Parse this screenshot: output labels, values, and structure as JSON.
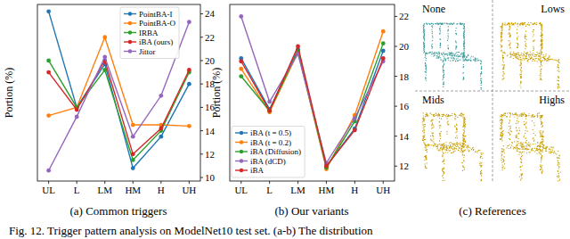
{
  "chart_data": [
    {
      "type": "line",
      "title": "(a) Common triggers",
      "y_label": "Portion (%)",
      "categories": [
        "UL",
        "L",
        "LM",
        "HM",
        "H",
        "UH"
      ],
      "series": [
        {
          "name": "PointBA-I",
          "color": "#1f77b4",
          "values": [
            24.2,
            16.0,
            19.7,
            10.8,
            13.5,
            18.0
          ]
        },
        {
          "name": "PointBA-O",
          "color": "#ff7f0e",
          "values": [
            15.3,
            16.0,
            22.0,
            14.5,
            14.5,
            14.4
          ]
        },
        {
          "name": "IRBA",
          "color": "#2ca02c",
          "values": [
            20.0,
            16.0,
            19.2,
            11.5,
            14.0,
            19.0
          ]
        },
        {
          "name": "iBA (ours)",
          "color": "#d62728",
          "values": [
            19.0,
            15.8,
            20.0,
            12.0,
            14.2,
            19.2
          ]
        },
        {
          "name": "Jittor",
          "color": "#9467bd",
          "values": [
            10.6,
            15.2,
            20.3,
            13.5,
            17.0,
            23.3
          ]
        }
      ],
      "ylim": [
        9.7,
        24.8
      ],
      "yticks": [
        10,
        12,
        14,
        16,
        18,
        20,
        22,
        24
      ],
      "marker": "circle",
      "legend": "upper right",
      "grid": false
    },
    {
      "type": "line",
      "title": "(b) Our variants",
      "y_label": "Portion (%)",
      "categories": [
        "UL",
        "L",
        "LM",
        "HM",
        "H",
        "UH"
      ],
      "series": [
        {
          "name": "iBA (t = 0.5)",
          "color": "#1f77b4",
          "values": [
            19.2,
            15.8,
            19.8,
            12.0,
            14.5,
            19.7
          ]
        },
        {
          "name": "iBA (t = 0.2)",
          "color": "#ff7f0e",
          "values": [
            18.5,
            15.6,
            19.6,
            11.8,
            15.4,
            21.0
          ]
        },
        {
          "name": "iBA (Diffusion)",
          "color": "#2ca02c",
          "values": [
            18.0,
            15.7,
            19.7,
            11.9,
            15.0,
            20.2
          ]
        },
        {
          "name": "iBA (dCD)",
          "color": "#9467bd",
          "values": [
            22.0,
            16.3,
            19.5,
            12.2,
            15.2,
            19.0
          ]
        },
        {
          "name": "iBA",
          "color": "#d62728",
          "values": [
            19.0,
            15.7,
            20.0,
            12.0,
            14.4,
            19.2
          ]
        }
      ],
      "ylim": [
        11,
        22.8
      ],
      "yticks": [
        12,
        14,
        16,
        18,
        20,
        22
      ],
      "marker": "circle",
      "legend": "lower left",
      "grid": false
    }
  ],
  "references": {
    "caption": "(c) References",
    "panels": [
      "None",
      "Lows",
      "Mids",
      "Highs"
    ],
    "colors": [
      "#3f9f9f",
      "#c9a005",
      "#c9a005",
      "#c9a005"
    ]
  },
  "figure_caption": "Fig. 12. Trigger pattern analysis on ModelNet10 test set. (a-b) The distribution"
}
